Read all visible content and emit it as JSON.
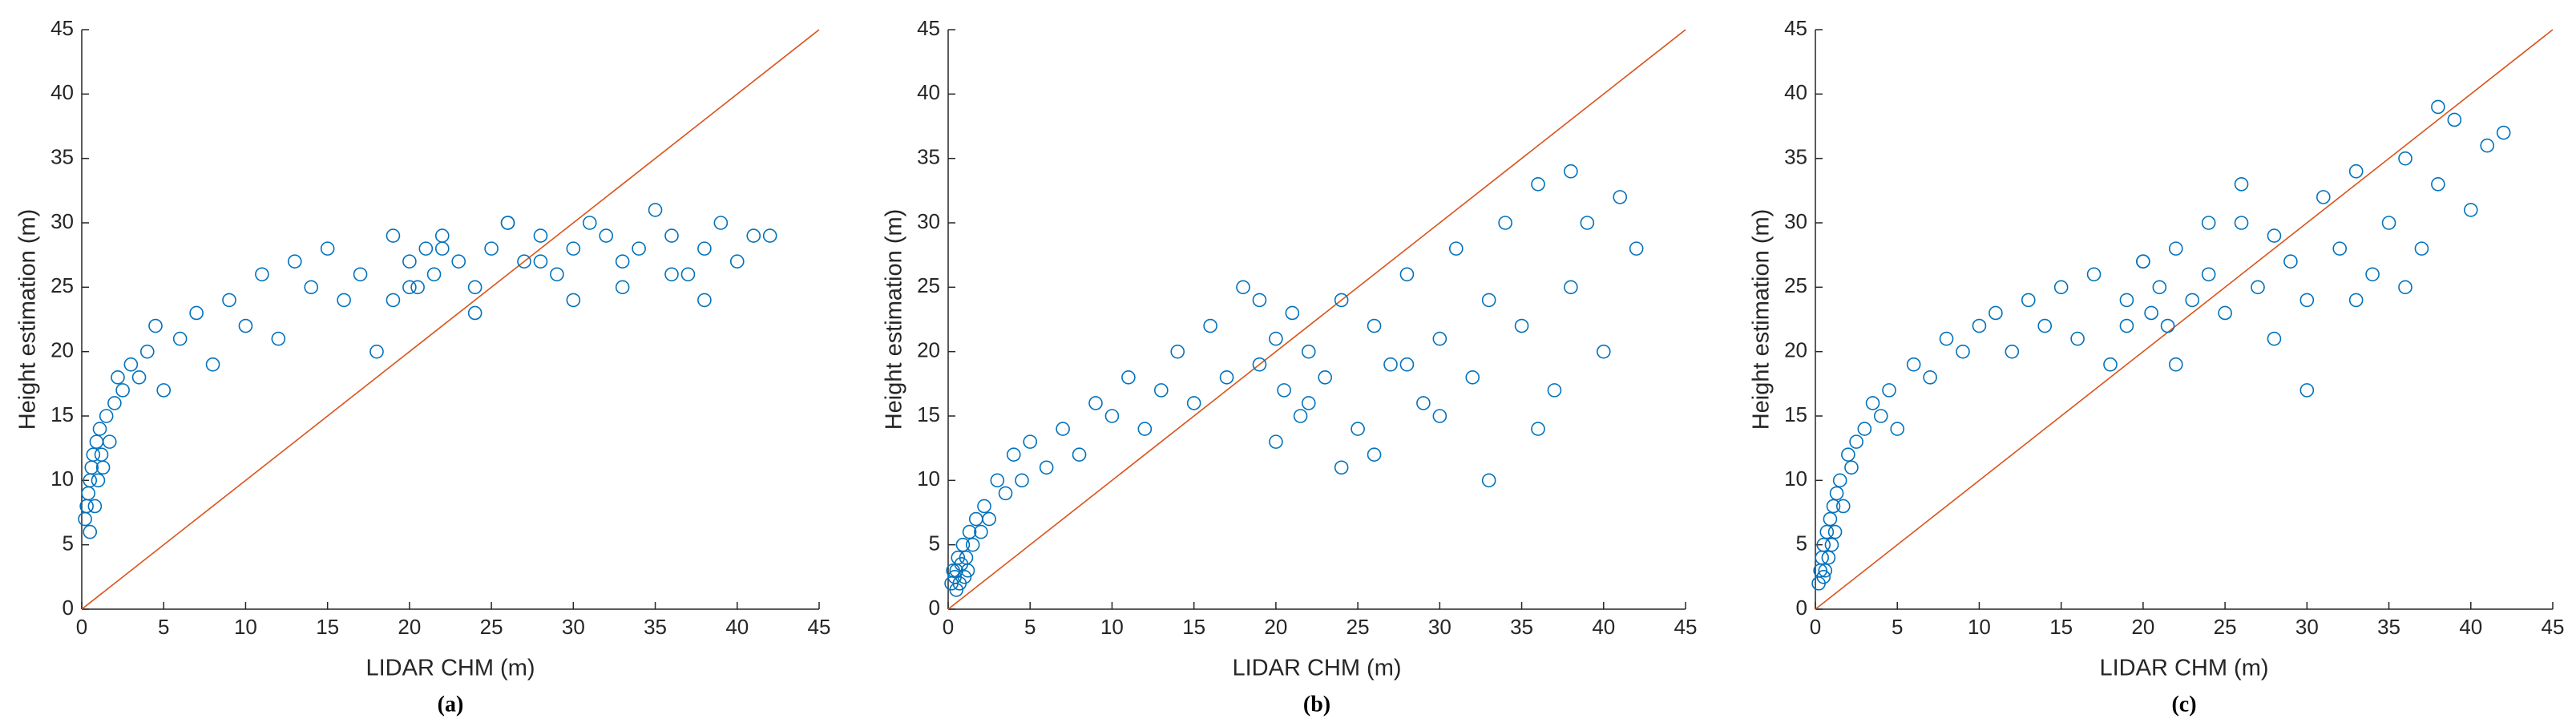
{
  "chart_data": [
    {
      "type": "scatter",
      "caption": "(a)",
      "xlabel": "LIDAR CHM (m)",
      "ylabel": "Height estimation (m)",
      "color": "#0072bd",
      "line_color": "#d95319",
      "xlim": [
        0,
        45
      ],
      "ylim": [
        0,
        45
      ],
      "xticks": [
        0,
        5,
        10,
        15,
        20,
        25,
        30,
        35,
        40,
        45
      ],
      "yticks": [
        0,
        5,
        10,
        15,
        20,
        25,
        30,
        35,
        40,
        45
      ],
      "x": [
        0.2,
        0.3,
        0.4,
        0.5,
        0.5,
        0.6,
        0.7,
        0.8,
        0.9,
        1,
        1.1,
        1.2,
        1.3,
        1.5,
        1.7,
        2,
        2.2,
        2.5,
        3,
        3.5,
        4,
        4.5,
        5,
        6,
        7,
        8,
        9,
        10,
        11,
        12,
        13,
        14,
        15,
        16,
        17,
        18,
        19,
        20,
        20.5,
        21,
        21.5,
        22,
        23,
        24,
        25,
        26,
        27,
        28,
        29,
        30,
        31,
        32,
        33,
        34,
        35,
        36,
        37,
        38,
        39,
        40,
        41,
        42,
        20,
        22,
        24,
        19,
        26,
        28,
        30,
        33,
        36,
        38
      ],
      "values": [
        7,
        8,
        9,
        6,
        10,
        11,
        12,
        8,
        13,
        10,
        14,
        12,
        11,
        15,
        13,
        16,
        18,
        17,
        19,
        18,
        20,
        22,
        17,
        21,
        23,
        19,
        24,
        22,
        26,
        21,
        27,
        25,
        28,
        24,
        26,
        20,
        29,
        27,
        25,
        28,
        26,
        29,
        27,
        25,
        28,
        30,
        27,
        29,
        26,
        28,
        30,
        29,
        27,
        28,
        31,
        29,
        26,
        28,
        30,
        27,
        29,
        29,
        25,
        28,
        23,
        24,
        30,
        27,
        24,
        25,
        26,
        24
      ]
    },
    {
      "type": "scatter",
      "caption": "(b)",
      "xlabel": "LIDAR CHM (m)",
      "ylabel": "Height estimation (m)",
      "color": "#0072bd",
      "line_color": "#d95319",
      "xlim": [
        0,
        45
      ],
      "ylim": [
        0,
        45
      ],
      "xticks": [
        0,
        5,
        10,
        15,
        20,
        25,
        30,
        35,
        40,
        45
      ],
      "yticks": [
        0,
        5,
        10,
        15,
        20,
        25,
        30,
        35,
        40,
        45
      ],
      "x": [
        0.2,
        0.3,
        0.4,
        0.5,
        0.5,
        0.6,
        0.7,
        0.8,
        0.9,
        1,
        1.1,
        1.2,
        1.3,
        1.5,
        1.7,
        2,
        2.2,
        2.5,
        3,
        3.5,
        4,
        4.5,
        5,
        6,
        7,
        8,
        9,
        10,
        11,
        12,
        13,
        14,
        15,
        16,
        17,
        18,
        19,
        20,
        20.5,
        21,
        21.5,
        22,
        23,
        24,
        25,
        26,
        27,
        28,
        29,
        30,
        31,
        32,
        33,
        34,
        35,
        36,
        37,
        38,
        39,
        40,
        41,
        42,
        20,
        22,
        24,
        19,
        26,
        28,
        30,
        33,
        36,
        38
      ],
      "values": [
        2,
        3,
        2.5,
        1.5,
        3,
        4,
        2,
        3.5,
        5,
        2.5,
        4,
        3,
        6,
        5,
        7,
        6,
        8,
        7,
        10,
        9,
        12,
        10,
        13,
        11,
        14,
        12,
        16,
        15,
        18,
        14,
        17,
        20,
        16,
        22,
        18,
        25,
        19,
        21,
        17,
        23,
        15,
        20,
        18,
        24,
        14,
        22,
        19,
        26,
        16,
        21,
        28,
        18,
        24,
        30,
        22,
        33,
        17,
        25,
        30,
        20,
        32,
        28,
        13,
        16,
        11,
        24,
        12,
        19,
        15,
        10,
        14,
        34
      ]
    },
    {
      "type": "scatter",
      "caption": "(c)",
      "xlabel": "LIDAR CHM (m)",
      "ylabel": "Height estimation (m)",
      "color": "#0072bd",
      "line_color": "#d95319",
      "xlim": [
        0,
        45
      ],
      "ylim": [
        0,
        45
      ],
      "xticks": [
        0,
        5,
        10,
        15,
        20,
        25,
        30,
        35,
        40,
        45
      ],
      "yticks": [
        0,
        5,
        10,
        15,
        20,
        25,
        30,
        35,
        40,
        45
      ],
      "x": [
        0.2,
        0.3,
        0.4,
        0.5,
        0.5,
        0.6,
        0.7,
        0.8,
        0.9,
        1,
        1.1,
        1.2,
        1.3,
        1.5,
        1.7,
        2,
        2.2,
        2.5,
        3,
        3.5,
        4,
        4.5,
        5,
        6,
        7,
        8,
        9,
        10,
        11,
        12,
        13,
        14,
        15,
        16,
        17,
        18,
        19,
        20,
        20.5,
        21,
        21.5,
        22,
        23,
        24,
        25,
        26,
        27,
        28,
        29,
        30,
        31,
        32,
        33,
        34,
        35,
        36,
        37,
        38,
        39,
        40,
        41,
        42,
        20,
        22,
        24,
        19,
        26,
        28,
        30,
        33,
        36,
        38
      ],
      "values": [
        2,
        3,
        4,
        2.5,
        5,
        3,
        6,
        4,
        7,
        5,
        8,
        6,
        9,
        10,
        8,
        12,
        11,
        13,
        14,
        16,
        15,
        17,
        14,
        19,
        18,
        21,
        20,
        22,
        23,
        20,
        24,
        22,
        25,
        21,
        26,
        19,
        24,
        27,
        23,
        25,
        22,
        28,
        24,
        26,
        23,
        30,
        25,
        29,
        27,
        24,
        32,
        28,
        34,
        26,
        30,
        35,
        28,
        33,
        38,
        31,
        36,
        37,
        27,
        19,
        30,
        22,
        33,
        21,
        17,
        24,
        25,
        39
      ]
    }
  ]
}
